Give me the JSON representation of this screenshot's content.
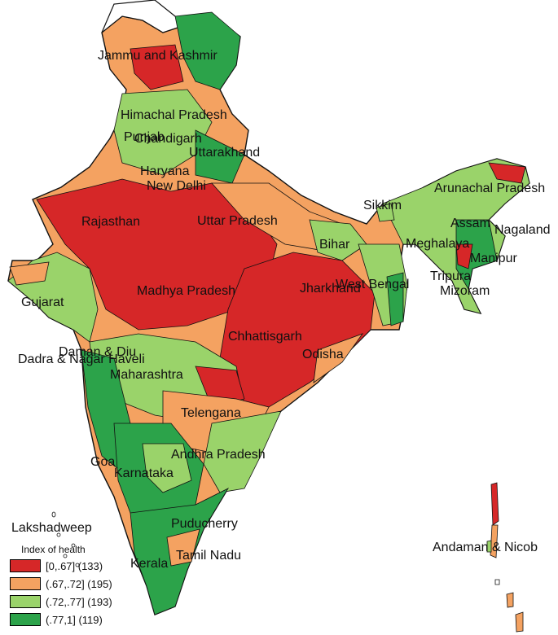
{
  "map": {
    "state_labels": [
      "Jammu and Kashmir",
      "Himachal Pradesh",
      "Punjab",
      "Chandigarh",
      "Uttarakhand",
      "Haryana",
      "New Delhi",
      "Rajasthan",
      "Uttar Pradesh",
      "Sikkim",
      "Arunachal Pradesh",
      "Assam",
      "Nagaland",
      "Meghalaya",
      "Manipur",
      "Bihar",
      "Tripura",
      "Mizoram",
      "West Bengal",
      "Jharkhand",
      "Madhya Pradesh",
      "Gujarat",
      "Chhattisgarh",
      "Odisha",
      "Daman & Diu",
      "Dadra & Nagar Haveli",
      "Maharashtra",
      "Telengana",
      "Goa",
      "Andhra Pradesh",
      "Karnataka",
      "Lakshadweep",
      "Puducherry",
      "Tamil Nadu",
      "Kerala",
      "Andaman & Nicob"
    ]
  },
  "legend": {
    "title": "Index of health",
    "items": [
      {
        "label": "[0,.67] (133)",
        "color": "#d62728"
      },
      {
        "label": "(.67,.72] (195)",
        "color": "#f4a261"
      },
      {
        "label": "(.72,.77] (193)",
        "color": "#9ad36a"
      },
      {
        "label": "(.77,1] (119)",
        "color": "#2ca34a"
      }
    ]
  }
}
